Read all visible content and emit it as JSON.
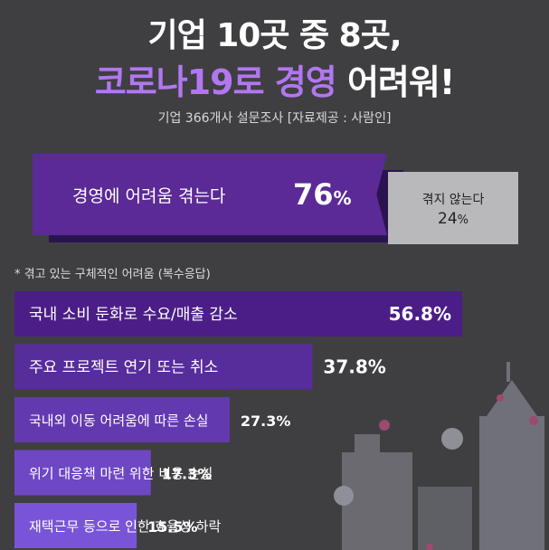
{
  "header": {
    "title_line1": "기업 10곳 중 8곳,",
    "title_line2_highlight1": "코로나19로",
    "title_line2_highlight2": "경영",
    "title_line2_rest": "어려워!",
    "subtitle": "기업 366개사 설문조사 [자료제공 : 사람인]"
  },
  "summary": {
    "yes_label": "경영에 어려움 겪는다",
    "yes_value": "76",
    "yes_unit": "%",
    "no_label": "겪지 않는다",
    "no_value": "24",
    "no_unit": "%"
  },
  "colors": {
    "bar_dark": "#4b1e87",
    "bar_light": "#7a54d8",
    "background": "#3f3f42",
    "accent": "#b277f0"
  },
  "chart_data": {
    "type": "bar",
    "title": "* 겪고 있는 구체적인 어려움 (복수응답)",
    "categories": [
      "국내 소비 둔화로 수요/매출 감소",
      "주요 프로젝트 연기 또는 취소",
      "국내외 이동 어려움에 따른 손실",
      "위기 대응책 마련 위한 비용 손실",
      "재택근무 등으로 인한 효율성 하락"
    ],
    "values": [
      56.8,
      37.8,
      27.3,
      17.3,
      15.5
    ],
    "value_labels": [
      "56.8%",
      "37.8%",
      "27.3%",
      "17.3%",
      "15.5%"
    ],
    "orientation": "horizontal",
    "unit": "%"
  }
}
